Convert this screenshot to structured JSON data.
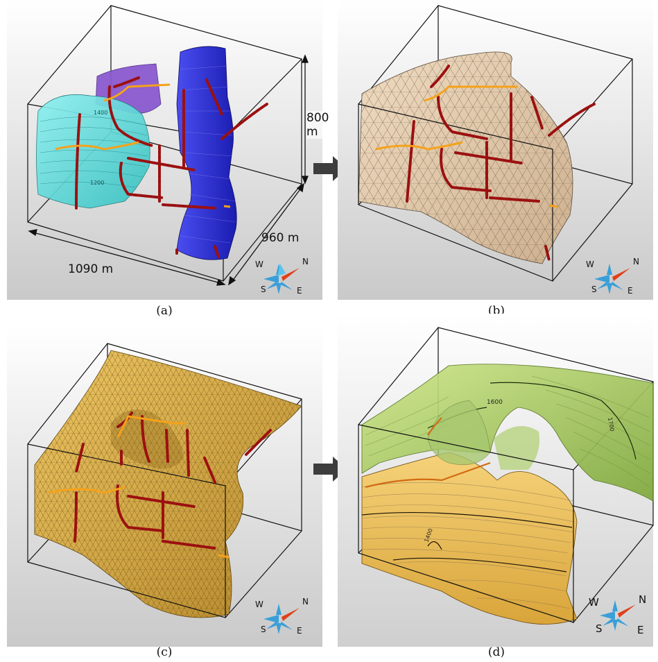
{
  "captions": {
    "a": "(a)",
    "b": "(b)",
    "c": "(c)",
    "d": "(d)"
  },
  "dimensions": {
    "height": "800 m",
    "depth": "960 m",
    "width": "1090 m"
  },
  "compass": {
    "west": "W",
    "north": "N",
    "south": "S",
    "east": "E"
  },
  "contour_labels": {
    "a1": "1400",
    "a2": "1200",
    "d1": "1600",
    "d2": "1700",
    "d3": "1400"
  },
  "colors": {
    "cyan_surface": "#5ad8d8",
    "blue_surface": "#2b2fd6",
    "purple_surface": "#8a5ad0",
    "tan_mesh": "#e6cfb3",
    "gold_mesh": "#e0b24a",
    "green_surface": "#9cc25a",
    "well_red": "#9b1010",
    "trace_orange": "#f5a21a",
    "compass_blue": "#3a9fd8",
    "compass_red": "#e0401a"
  }
}
